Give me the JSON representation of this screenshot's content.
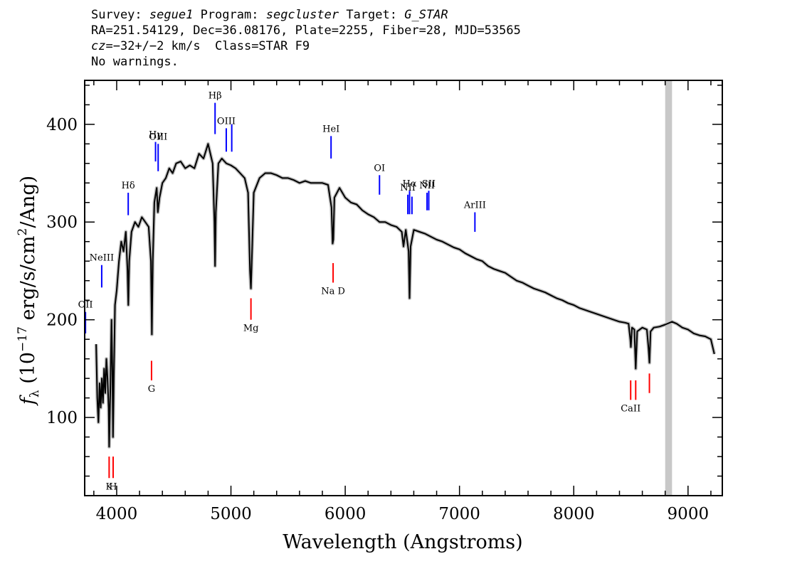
{
  "header": {
    "survey_label": "Survey:",
    "survey_value": "segue1",
    "program_label": "Program:",
    "program_value": "segcluster",
    "target_label": "Target:",
    "target_value": "G_STAR",
    "line2": "RA=251.54129, Dec=36.08176, Plate=2255, Fiber=28, MJD=53565",
    "cz_label": "cz",
    "cz_value": "=−32+/−2",
    "cz_unit": " km/s  Class=STAR F9",
    "line4": "No warnings."
  },
  "colors": {
    "emission": "#0000ff",
    "absorption": "#ff0000",
    "spectrum": "#000000",
    "error_band": "#bebebe",
    "masked_band": "#c8c8c8"
  },
  "chart_data": {
    "type": "line",
    "xlabel": "Wavelength (Angstroms)",
    "ylabel": "f_λ (10^-17 erg/s/cm^2/Ang)",
    "xlim": [
      3720,
      9300
    ],
    "ylim": [
      20,
      445
    ],
    "xticks": [
      4000,
      5000,
      6000,
      7000,
      8000,
      9000
    ],
    "yticks": [
      100,
      200,
      300,
      400
    ],
    "masked_band": [
      8800,
      8860
    ],
    "series": [
      {
        "kind": "flux",
        "points": [
          [
            3820,
            175
          ],
          [
            3830,
            120
          ],
          [
            3840,
            95
          ],
          [
            3850,
            135
          ],
          [
            3860,
            110
          ],
          [
            3870,
            140
          ],
          [
            3880,
            115
          ],
          [
            3890,
            150
          ],
          [
            3900,
            125
          ],
          [
            3910,
            160
          ],
          [
            3920,
            140
          ],
          [
            3930,
            110
          ],
          [
            3934,
            70
          ],
          [
            3945,
            130
          ],
          [
            3955,
            200
          ],
          [
            3962,
            150
          ],
          [
            3968,
            80
          ],
          [
            3975,
            140
          ],
          [
            3985,
            215
          ],
          [
            4000,
            230
          ],
          [
            4020,
            260
          ],
          [
            4040,
            280
          ],
          [
            4060,
            270
          ],
          [
            4080,
            290
          ],
          [
            4095,
            250
          ],
          [
            4102,
            215
          ],
          [
            4110,
            260
          ],
          [
            4130,
            290
          ],
          [
            4160,
            300
          ],
          [
            4190,
            295
          ],
          [
            4220,
            305
          ],
          [
            4250,
            300
          ],
          [
            4280,
            295
          ],
          [
            4300,
            260
          ],
          [
            4308,
            185
          ],
          [
            4316,
            260
          ],
          [
            4330,
            320
          ],
          [
            4350,
            335
          ],
          [
            4360,
            310
          ],
          [
            4375,
            325
          ],
          [
            4400,
            340
          ],
          [
            4430,
            345
          ],
          [
            4460,
            355
          ],
          [
            4490,
            350
          ],
          [
            4520,
            360
          ],
          [
            4560,
            362
          ],
          [
            4600,
            355
          ],
          [
            4640,
            358
          ],
          [
            4680,
            355
          ],
          [
            4720,
            370
          ],
          [
            4760,
            365
          ],
          [
            4800,
            380
          ],
          [
            4840,
            360
          ],
          [
            4855,
            300
          ],
          [
            4861,
            255
          ],
          [
            4868,
            310
          ],
          [
            4890,
            360
          ],
          [
            4920,
            365
          ],
          [
            4960,
            360
          ],
          [
            5000,
            358
          ],
          [
            5040,
            355
          ],
          [
            5080,
            350
          ],
          [
            5120,
            345
          ],
          [
            5150,
            330
          ],
          [
            5167,
            250
          ],
          [
            5175,
            232
          ],
          [
            5185,
            270
          ],
          [
            5200,
            330
          ],
          [
            5250,
            345
          ],
          [
            5300,
            350
          ],
          [
            5350,
            350
          ],
          [
            5400,
            348
          ],
          [
            5450,
            345
          ],
          [
            5500,
            345
          ],
          [
            5550,
            343
          ],
          [
            5600,
            340
          ],
          [
            5650,
            342
          ],
          [
            5700,
            340
          ],
          [
            5750,
            340
          ],
          [
            5800,
            340
          ],
          [
            5850,
            338
          ],
          [
            5880,
            315
          ],
          [
            5890,
            278
          ],
          [
            5896,
            282
          ],
          [
            5905,
            325
          ],
          [
            5950,
            335
          ],
          [
            6000,
            325
          ],
          [
            6050,
            320
          ],
          [
            6100,
            318
          ],
          [
            6150,
            312
          ],
          [
            6200,
            308
          ],
          [
            6250,
            305
          ],
          [
            6300,
            300
          ],
          [
            6350,
            300
          ],
          [
            6400,
            297
          ],
          [
            6450,
            295
          ],
          [
            6495,
            290
          ],
          [
            6510,
            275
          ],
          [
            6530,
            292
          ],
          [
            6555,
            270
          ],
          [
            6563,
            222
          ],
          [
            6572,
            275
          ],
          [
            6600,
            292
          ],
          [
            6650,
            290
          ],
          [
            6700,
            288
          ],
          [
            6750,
            285
          ],
          [
            6800,
            282
          ],
          [
            6850,
            280
          ],
          [
            6900,
            277
          ],
          [
            6950,
            274
          ],
          [
            7000,
            272
          ],
          [
            7050,
            268
          ],
          [
            7100,
            265
          ],
          [
            7150,
            262
          ],
          [
            7200,
            260
          ],
          [
            7250,
            255
          ],
          [
            7300,
            252
          ],
          [
            7350,
            250
          ],
          [
            7400,
            248
          ],
          [
            7450,
            244
          ],
          [
            7500,
            240
          ],
          [
            7550,
            238
          ],
          [
            7600,
            235
          ],
          [
            7650,
            232
          ],
          [
            7700,
            230
          ],
          [
            7750,
            228
          ],
          [
            7800,
            225
          ],
          [
            7850,
            222
          ],
          [
            7900,
            220
          ],
          [
            7950,
            217
          ],
          [
            8000,
            215
          ],
          [
            8050,
            212
          ],
          [
            8100,
            210
          ],
          [
            8150,
            208
          ],
          [
            8200,
            206
          ],
          [
            8250,
            204
          ],
          [
            8300,
            202
          ],
          [
            8350,
            200
          ],
          [
            8400,
            198
          ],
          [
            8450,
            197
          ],
          [
            8480,
            196
          ],
          [
            8495,
            180
          ],
          [
            8500,
            172
          ],
          [
            8510,
            192
          ],
          [
            8530,
            190
          ],
          [
            8542,
            150
          ],
          [
            8555,
            188
          ],
          [
            8600,
            192
          ],
          [
            8640,
            190
          ],
          [
            8655,
            170
          ],
          [
            8662,
            156
          ],
          [
            8672,
            188
          ],
          [
            8700,
            192
          ],
          [
            8750,
            193
          ],
          [
            8800,
            195
          ],
          [
            8860,
            198
          ],
          [
            8900,
            196
          ],
          [
            8950,
            192
          ],
          [
            9000,
            190
          ],
          [
            9050,
            186
          ],
          [
            9100,
            184
          ],
          [
            9150,
            183
          ],
          [
            9200,
            180
          ],
          [
            9230,
            165
          ]
        ]
      }
    ],
    "lines": [
      {
        "label": "Hβ",
        "wl": 4861,
        "type": "emission",
        "y0": 390,
        "y1": 422
      },
      {
        "label": "OIII",
        "wl": 4959,
        "type": "emission",
        "y0": 372,
        "y1": 396
      },
      {
        "label": "",
        "wl": 5007,
        "type": "emission",
        "y0": 372,
        "y1": 400
      },
      {
        "label": "Hγ",
        "wl": 4340,
        "type": "emission",
        "y0": 362,
        "y1": 382
      },
      {
        "label": "OIII",
        "wl": 4363,
        "type": "emission",
        "y0": 352,
        "y1": 380
      },
      {
        "label": "Hδ",
        "wl": 4101,
        "type": "emission",
        "y0": 307,
        "y1": 330
      },
      {
        "label": "HeI",
        "wl": 5876,
        "type": "emission",
        "y0": 365,
        "y1": 388
      },
      {
        "label": "OI",
        "wl": 6300,
        "type": "emission",
        "y0": 328,
        "y1": 348
      },
      {
        "label": "NII",
        "wl": 6548,
        "type": "emission",
        "y0": 308,
        "y1": 328
      },
      {
        "label": "Hα",
        "wl": 6563,
        "type": "emission",
        "y0": 308,
        "y1": 332
      },
      {
        "label": "",
        "wl": 6584,
        "type": "emission",
        "y0": 308,
        "y1": 326
      },
      {
        "label": "NII",
        "wl": 6716,
        "type": "emission",
        "y0": 312,
        "y1": 330
      },
      {
        "label": "SII",
        "wl": 6731,
        "type": "emission",
        "y0": 312,
        "y1": 332
      },
      {
        "label": "ArIII",
        "wl": 7135,
        "type": "emission",
        "y0": 290,
        "y1": 310
      },
      {
        "label": "NeIII",
        "wl": 3869,
        "type": "emission",
        "y0": 233,
        "y1": 256
      },
      {
        "label": "OII",
        "wl": 3727,
        "type": "emission",
        "y0": 186,
        "y1": 208
      },
      {
        "label": "K",
        "wl": 3934,
        "type": "absorption",
        "y0": 38,
        "y1": 60
      },
      {
        "label": "H",
        "wl": 3969,
        "type": "absorption",
        "y0": 38,
        "y1": 60
      },
      {
        "label": "G",
        "wl": 4305,
        "type": "absorption",
        "y0": 138,
        "y1": 158
      },
      {
        "label": "Mg",
        "wl": 5175,
        "type": "absorption",
        "y0": 200,
        "y1": 222
      },
      {
        "label": "Na D",
        "wl": 5894,
        "type": "absorption",
        "y0": 238,
        "y1": 258
      },
      {
        "label": "CaII",
        "wl": 8498,
        "type": "absorption",
        "y0": 118,
        "y1": 138
      },
      {
        "label": "",
        "wl": 8542,
        "type": "absorption",
        "y0": 118,
        "y1": 138
      },
      {
        "label": "",
        "wl": 8662,
        "type": "absorption",
        "y0": 125,
        "y1": 145
      }
    ]
  }
}
